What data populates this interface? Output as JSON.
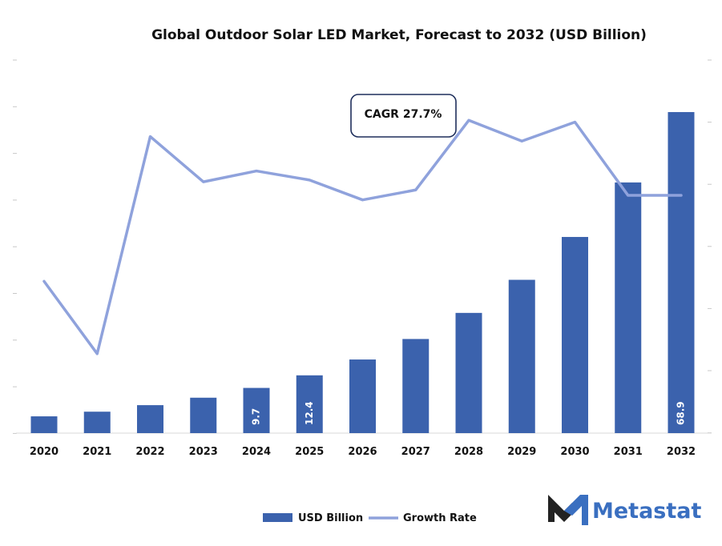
{
  "chart_data": {
    "type": "bar",
    "title": "Global Outdoor Solar LED Market, Forecast to 2032 (USD Billion)",
    "categories": [
      "2020",
      "2021",
      "2022",
      "2023",
      "2024",
      "2025",
      "2026",
      "2027",
      "2028",
      "2029",
      "2030",
      "2031",
      "2032"
    ],
    "series": [
      {
        "name": "USD Billion",
        "type": "bar",
        "color": "#3b62ad",
        "values": [
          3.6,
          4.6,
          6.0,
          7.6,
          9.7,
          12.4,
          15.8,
          20.2,
          25.8,
          32.9,
          42.1,
          53.8,
          68.9
        ]
      },
      {
        "name": "Growth Rate",
        "type": "line",
        "color": "#8fa2dc",
        "values": [
          22.0,
          14.0,
          38.0,
          33.0,
          34.2,
          33.2,
          31.0,
          32.1,
          39.8,
          37.5,
          39.6,
          31.5,
          31.5
        ]
      }
    ],
    "data_labels": {
      "4": "9.7",
      "5": "12.4",
      "12": "68.9"
    },
    "annotation": "CAGR 27.7%",
    "legend_position": "bottom"
  },
  "logo": {
    "name": "Metastat"
  }
}
